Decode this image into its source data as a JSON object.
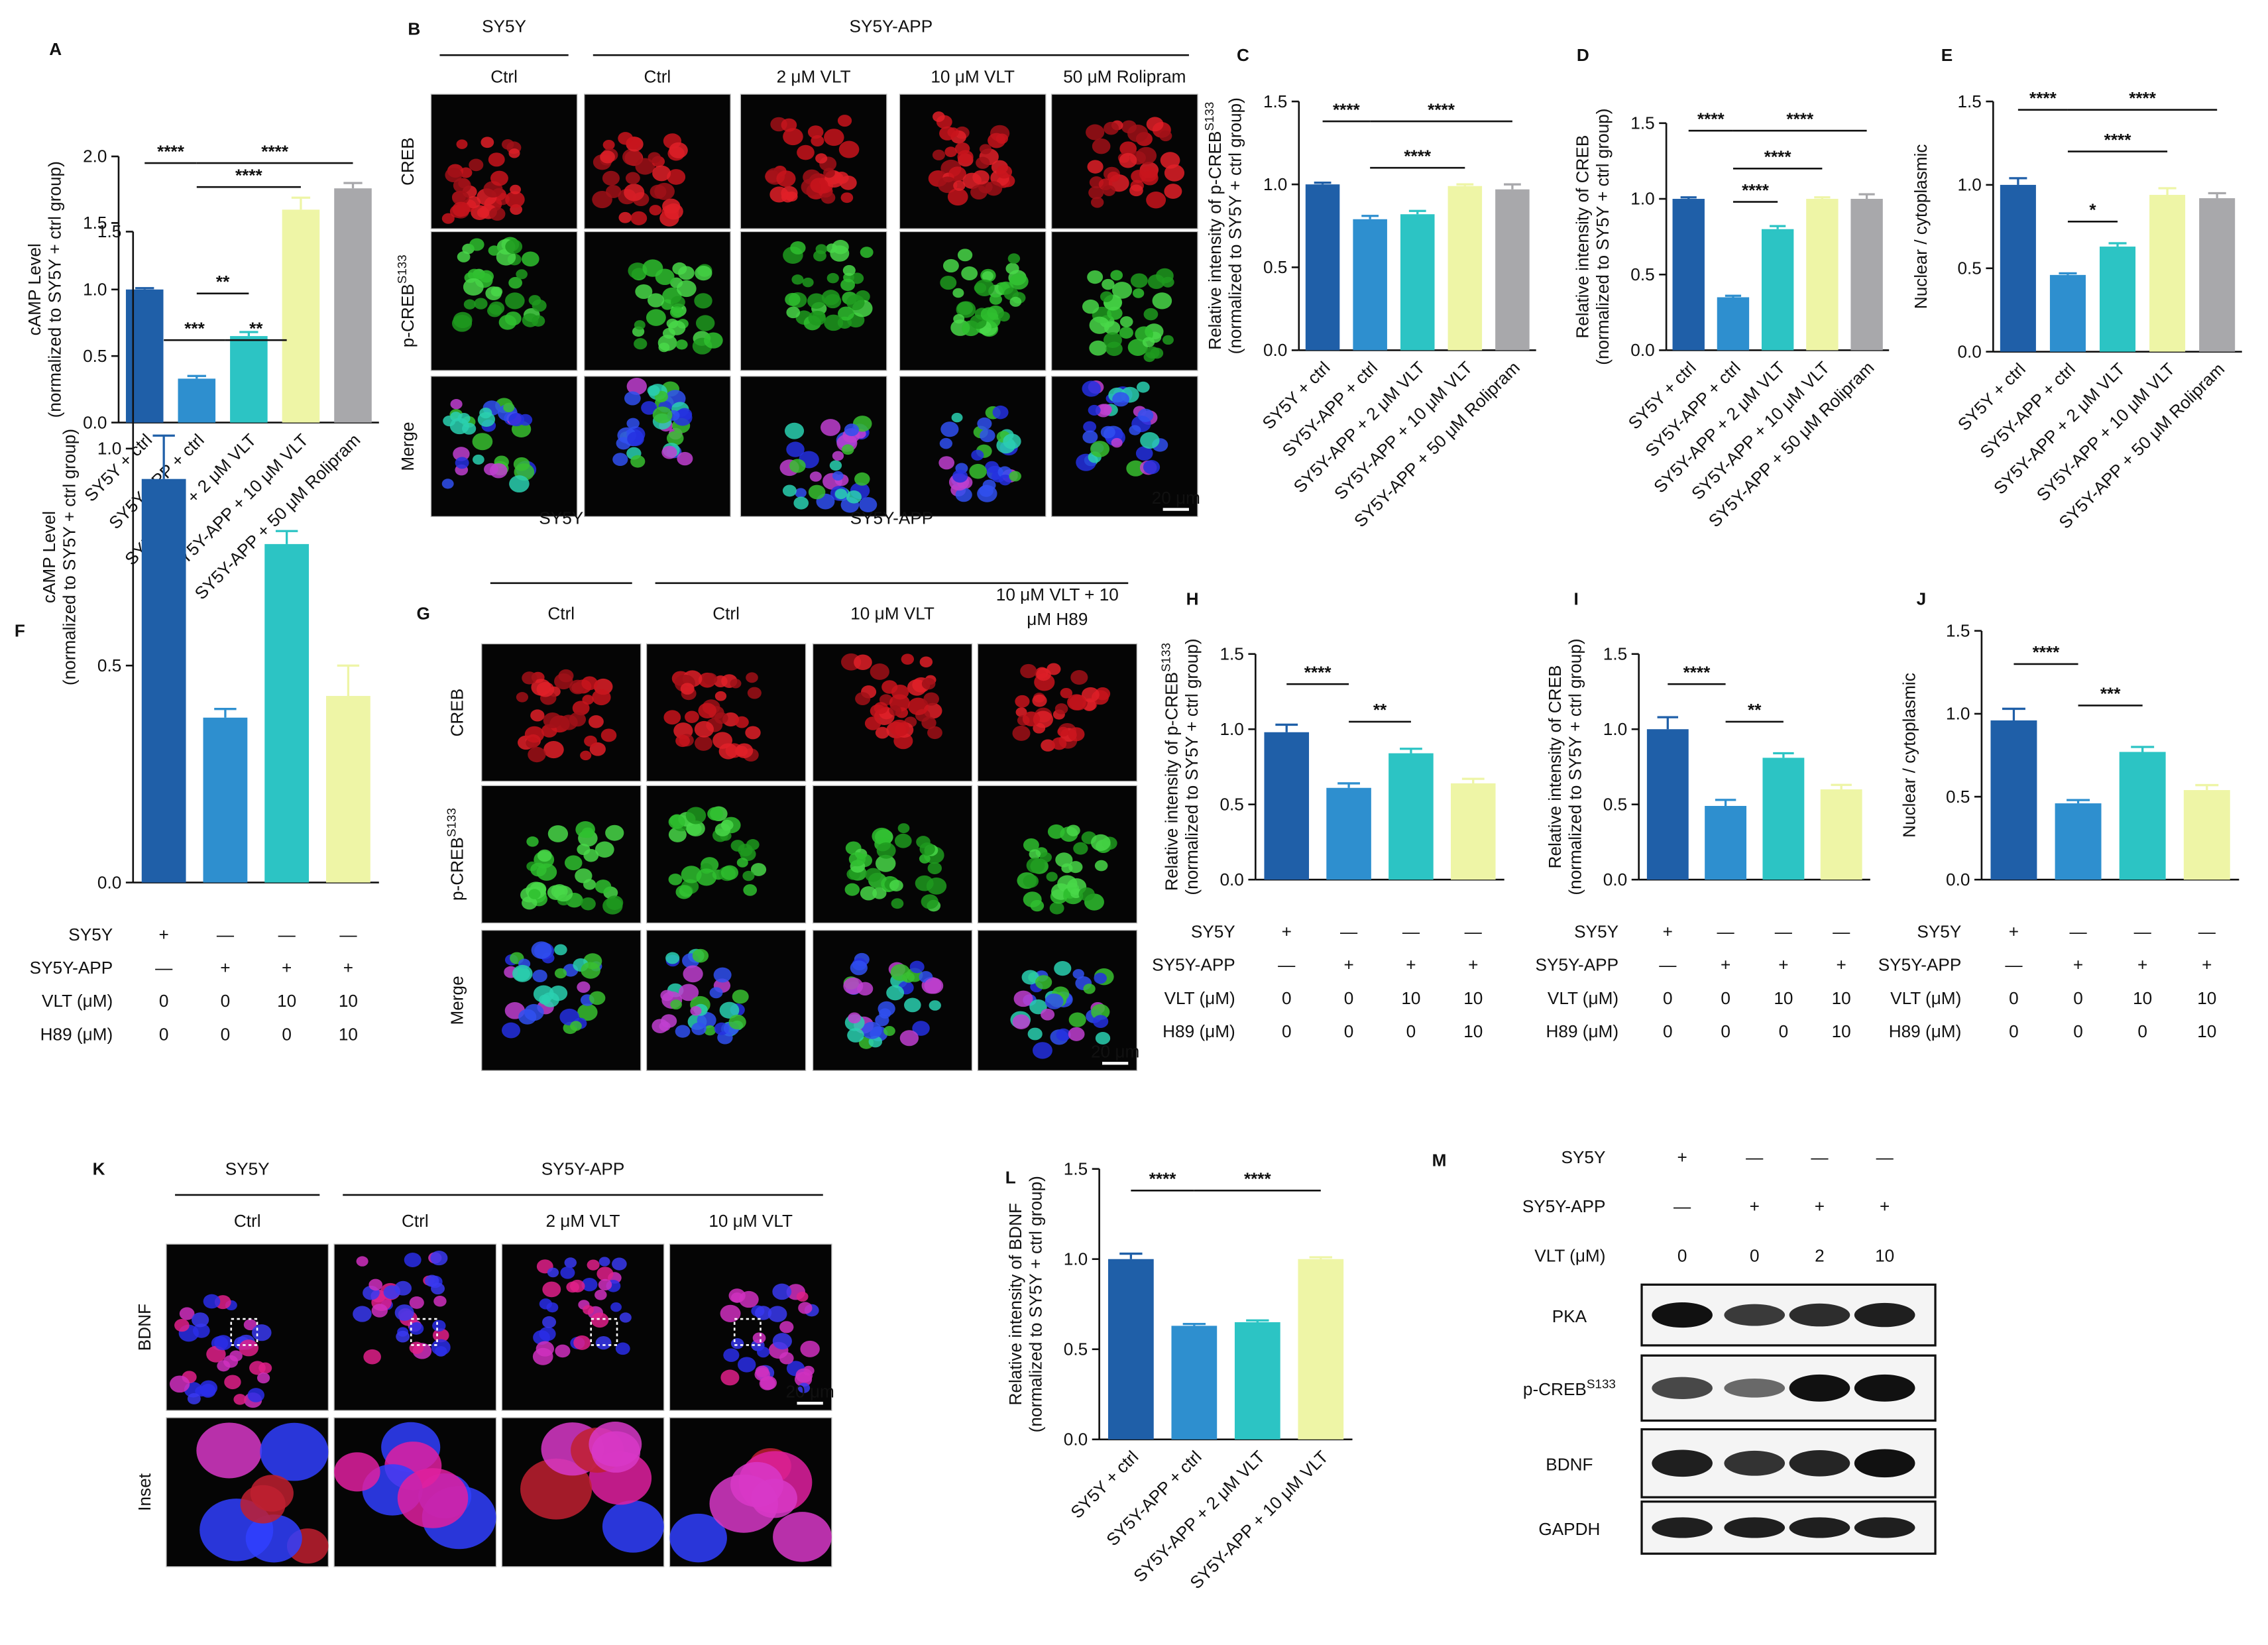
{
  "chart_data": [
    {
      "type": "bar",
      "panel": "A",
      "y_label": [
        "cAMP Level",
        "(normalized to SY5Y + ctrl group)"
      ],
      "categories": [
        "SY5Y + ctrl",
        "SY5Y-APP + ctrl",
        "SY5Y-APP + 2 μM VLT",
        "SY5Y-APP + 10 μM VLT",
        "SY5Y-APP + 50 μM Rolipram"
      ],
      "values": [
        1.0,
        0.33,
        0.65,
        1.6,
        1.76
      ],
      "errors": [
        0.01,
        0.02,
        0.03,
        0.09,
        0.04
      ],
      "colors": [
        "#1f5fa8",
        "#2e8fcf",
        "#2cc4c4",
        "#eef5a6",
        "#a8a8ab"
      ],
      "ylim": [
        0,
        2.0
      ],
      "yticks": [
        {
          "value": 0,
          "label": "0.0"
        },
        0.5,
        {
          "value": 1,
          "label": "1.0"
        },
        1.5,
        {
          "value": 2,
          "label": "2.0"
        }
      ],
      "significance": [
        {
          "groups": [
            0,
            1
          ],
          "y": 1.95,
          "label": "****"
        },
        {
          "groups": [
            1,
            4
          ],
          "y": 1.95,
          "label": "****"
        },
        {
          "groups": [
            1,
            3
          ],
          "y": 1.77,
          "label": "****"
        },
        {
          "groups": [
            1,
            2
          ],
          "y": 0.97,
          "label": "**"
        }
      ]
    },
    {
      "type": "bar",
      "panel": "C",
      "y_label": [
        {
          "text": "Relative intensity of  p-CREB",
          "sup": "S133"
        },
        "(normalized to SY5Y + ctrl group)"
      ],
      "categories": [
        "SY5Y + ctrl",
        "SY5Y-APP + ctrl",
        "SY5Y-APP + 2 μM VLT",
        "SY5Y-APP + 10 μM VLT",
        "SY5Y-APP + 50 μM Rolipram"
      ],
      "values": [
        1.0,
        0.79,
        0.82,
        0.99,
        0.97
      ],
      "errors": [
        0.01,
        0.02,
        0.02,
        0.01,
        0.03
      ],
      "colors": [
        "#1f5fa8",
        "#2e8fcf",
        "#2cc4c4",
        "#eef5a6",
        "#a8a8ab"
      ],
      "ylim": [
        0,
        1.5
      ],
      "yticks": [
        {
          "value": 0,
          "label": "0.0"
        },
        0.5,
        {
          "value": 1,
          "label": "1.0"
        },
        1.5
      ],
      "significance": [
        {
          "groups": [
            0,
            1
          ],
          "y": 1.38,
          "label": "****"
        },
        {
          "groups": [
            1,
            4
          ],
          "y": 1.38,
          "label": "****"
        },
        {
          "groups": [
            1,
            3
          ],
          "y": 1.1,
          "label": "****"
        }
      ]
    },
    {
      "type": "bar",
      "panel": "D",
      "y_label": [
        "Relative intensity of CREB",
        "(normalized to SY5Y + ctrl group)"
      ],
      "categories": [
        "SY5Y + ctrl",
        "SY5Y-APP + ctrl",
        "SY5Y-APP + 2 μM VLT",
        "SY5Y-APP + 10 μM VLT",
        "SY5Y-APP + 50 μM Rolipram"
      ],
      "values": [
        1.0,
        0.35,
        0.8,
        1.0,
        1.0
      ],
      "errors": [
        0.01,
        0.01,
        0.02,
        0.01,
        0.03
      ],
      "colors": [
        "#1f5fa8",
        "#2e8fcf",
        "#2cc4c4",
        "#eef5a6",
        "#a8a8ab"
      ],
      "ylim": [
        0,
        1.5
      ],
      "yticks": [
        {
          "value": 0,
          "label": "0.0"
        },
        0.5,
        {
          "value": 1,
          "label": "1.0"
        },
        1.5
      ],
      "significance": [
        {
          "groups": [
            0,
            1
          ],
          "y": 1.45,
          "label": "****"
        },
        {
          "groups": [
            1,
            4
          ],
          "y": 1.45,
          "label": "****"
        },
        {
          "groups": [
            1,
            3
          ],
          "y": 1.2,
          "label": "****"
        },
        {
          "groups": [
            1,
            2
          ],
          "y": 0.98,
          "label": "****"
        }
      ]
    },
    {
      "type": "bar",
      "panel": "E",
      "y_label": [
        "Nuclear / cytoplasmic"
      ],
      "categories": [
        "SY5Y + ctrl",
        "SY5Y-APP + ctrl",
        "SY5Y-APP + 2 μM VLT",
        "SY5Y-APP + 10 μM VLT",
        "SY5Y-APP + 50 μM Rolipram"
      ],
      "values": [
        1.0,
        0.46,
        0.63,
        0.94,
        0.92
      ],
      "errors": [
        0.04,
        0.01,
        0.02,
        0.04,
        0.03
      ],
      "colors": [
        "#1f5fa8",
        "#2e8fcf",
        "#2cc4c4",
        "#eef5a6",
        "#a8a8ab"
      ],
      "ylim": [
        0,
        1.5
      ],
      "yticks": [
        {
          "value": 0,
          "label": "0.0"
        },
        0.5,
        {
          "value": 1,
          "label": "1.0"
        },
        1.5
      ],
      "significance": [
        {
          "groups": [
            0,
            1
          ],
          "y": 1.45,
          "label": "****"
        },
        {
          "groups": [
            1,
            4
          ],
          "y": 1.45,
          "label": "****"
        },
        {
          "groups": [
            1,
            3
          ],
          "y": 1.2,
          "label": "****"
        },
        {
          "groups": [
            1,
            2
          ],
          "y": 0.78,
          "label": "*"
        }
      ]
    },
    {
      "type": "bar",
      "panel": "F",
      "y_label": [
        "cAMP Level",
        "(normalized to SY5Y + ctrl group)"
      ],
      "values": [
        0.93,
        0.38,
        0.78,
        0.43
      ],
      "errors": [
        0.1,
        0.02,
        0.03,
        0.07
      ],
      "colors": [
        "#1f5fa8",
        "#2e8fcf",
        "#2cc4c4",
        "#eef5a6"
      ],
      "conditions": [
        {
          "label": "SY5Y",
          "values": [
            "+",
            "—",
            "—",
            "—"
          ]
        },
        {
          "label": "SY5Y-APP",
          "values": [
            "—",
            "+",
            "+",
            "+"
          ]
        },
        {
          "label": "VLT (μM)",
          "values": [
            "0",
            "0",
            "10",
            "10"
          ]
        },
        {
          "label": "H89 (μM)",
          "values": [
            "0",
            "0",
            "0",
            "10"
          ]
        }
      ],
      "ylim": [
        0,
        1.5
      ],
      "yticks": [
        {
          "value": 0,
          "label": "0.0"
        },
        0.5,
        {
          "value": 1,
          "label": "1.0"
        },
        1.5
      ],
      "significance": [
        {
          "groups": [
            0,
            1
          ],
          "y": 1.25,
          "label": "***"
        },
        {
          "groups": [
            1,
            2
          ],
          "y": 1.25,
          "label": "**"
        }
      ]
    },
    {
      "type": "bar",
      "panel": "H",
      "y_label": [
        {
          "text": "Relative intensity of  p-CREB",
          "sup": "S133"
        },
        "(normalized to SY5Y + ctrl group)"
      ],
      "values": [
        0.98,
        0.61,
        0.84,
        0.64
      ],
      "errors": [
        0.05,
        0.03,
        0.03,
        0.03
      ],
      "colors": [
        "#1f5fa8",
        "#2e8fcf",
        "#2cc4c4",
        "#eef5a6"
      ],
      "conditions": [
        {
          "label": "SY5Y",
          "values": [
            "+",
            "—",
            "—",
            "—"
          ]
        },
        {
          "label": "SY5Y-APP",
          "values": [
            "—",
            "+",
            "+",
            "+"
          ]
        },
        {
          "label": "VLT (μM)",
          "values": [
            "0",
            "0",
            "10",
            "10"
          ]
        },
        {
          "label": "H89 (μM)",
          "values": [
            "0",
            "0",
            "0",
            "10"
          ]
        }
      ],
      "ylim": [
        0,
        1.5
      ],
      "yticks": [
        {
          "value": 0,
          "label": "0.0"
        },
        0.5,
        {
          "value": 1,
          "label": "1.0"
        },
        1.5
      ],
      "significance": [
        {
          "groups": [
            0,
            1
          ],
          "y": 1.3,
          "label": "****"
        },
        {
          "groups": [
            1,
            2
          ],
          "y": 1.05,
          "label": "**"
        }
      ]
    },
    {
      "type": "bar",
      "panel": "I",
      "y_label": [
        "Relative intensity of  CREB",
        "(normalized to SY5Y + ctrl group)"
      ],
      "values": [
        1.0,
        0.49,
        0.81,
        0.6
      ],
      "errors": [
        0.08,
        0.04,
        0.03,
        0.03
      ],
      "colors": [
        "#1f5fa8",
        "#2e8fcf",
        "#2cc4c4",
        "#eef5a6"
      ],
      "conditions": [
        {
          "label": "SY5Y",
          "values": [
            "+",
            "—",
            "—",
            "—"
          ]
        },
        {
          "label": "SY5Y-APP",
          "values": [
            "—",
            "+",
            "+",
            "+"
          ]
        },
        {
          "label": "VLT (μM)",
          "values": [
            "0",
            "0",
            "10",
            "10"
          ]
        },
        {
          "label": "H89 (μM)",
          "values": [
            "0",
            "0",
            "0",
            "10"
          ]
        }
      ],
      "ylim": [
        0,
        1.5
      ],
      "yticks": [
        {
          "value": 0,
          "label": "0.0"
        },
        0.5,
        {
          "value": 1,
          "label": "1.0"
        },
        1.5
      ],
      "significance": [
        {
          "groups": [
            0,
            1
          ],
          "y": 1.3,
          "label": "****"
        },
        {
          "groups": [
            1,
            2
          ],
          "y": 1.05,
          "label": "**"
        }
      ]
    },
    {
      "type": "bar",
      "panel": "J",
      "y_label": [
        "Nuclear / cytoplasmic"
      ],
      "values": [
        0.96,
        0.46,
        0.77,
        0.54
      ],
      "errors": [
        0.07,
        0.02,
        0.03,
        0.03
      ],
      "colors": [
        "#1f5fa8",
        "#2e8fcf",
        "#2cc4c4",
        "#eef5a6"
      ],
      "conditions": [
        {
          "label": "SY5Y",
          "values": [
            "+",
            "—",
            "—",
            "—"
          ]
        },
        {
          "label": "SY5Y-APP",
          "values": [
            "—",
            "+",
            "+",
            "+"
          ]
        },
        {
          "label": "VLT (μM)",
          "values": [
            "0",
            "0",
            "10",
            "10"
          ]
        },
        {
          "label": "H89 (μM)",
          "values": [
            "0",
            "0",
            "0",
            "10"
          ]
        }
      ],
      "ylim": [
        0,
        1.5
      ],
      "yticks": [
        {
          "value": 0,
          "label": "0.0"
        },
        0.5,
        {
          "value": 1,
          "label": "1.0"
        },
        1.5
      ],
      "significance": [
        {
          "groups": [
            0,
            1
          ],
          "y": 1.3,
          "label": "****"
        },
        {
          "groups": [
            1,
            2
          ],
          "y": 1.05,
          "label": "***"
        }
      ]
    },
    {
      "type": "bar",
      "panel": "L",
      "y_label": [
        "Relative intensity of BDNF",
        "(normalized to SY5Y + ctrl group)"
      ],
      "categories": [
        "SY5Y + ctrl",
        "SY5Y-APP + ctrl",
        "SY5Y-APP + 2 μM VLT",
        "SY5Y-APP + 10 μM VLT"
      ],
      "values": [
        1.0,
        0.63,
        0.65,
        1.0
      ],
      "errors": [
        0.03,
        0.01,
        0.01,
        0.01
      ],
      "colors": [
        "#1f5fa8",
        "#2e8fcf",
        "#2cc4c4",
        "#eef5a6"
      ],
      "ylim": [
        0,
        1.5
      ],
      "yticks": [
        {
          "value": 0,
          "label": "0.0"
        },
        0.5,
        {
          "value": 1,
          "label": "1.0"
        },
        1.5
      ],
      "significance": [
        {
          "groups": [
            0,
            1
          ],
          "y": 1.38,
          "label": "****"
        },
        {
          "groups": [
            1,
            3
          ],
          "y": 1.38,
          "label": "****"
        }
      ]
    }
  ],
  "image_panels": [
    {
      "panel": "B",
      "groups": [
        {
          "label": "SY5Y",
          "span": 1
        },
        {
          "label": "SY5Y-APP",
          "span": 4
        }
      ],
      "columns": [
        "Ctrl",
        "Ctrl",
        "2 μM VLT",
        "10 μM VLT",
        "50 μM Rolipram"
      ],
      "rows": [
        "CREB",
        {
          "text": "p-CREB",
          "sup": "S133"
        },
        "Merge"
      ],
      "row_colors": [
        "#e8141b",
        "#1aa81a",
        "#000000"
      ],
      "scale_bar": "20 μm"
    },
    {
      "panel": "G",
      "groups": [
        {
          "label": "SY5Y",
          "span": 1
        },
        {
          "label": "SY5Y-APP",
          "span": 3
        }
      ],
      "columns": [
        "Ctrl",
        "Ctrl",
        "10 μM VLT",
        [
          "10 μM VLT + 10",
          "μM H89"
        ]
      ],
      "rows": [
        "CREB",
        {
          "text": "p-CREB",
          "sup": "S133"
        },
        "Merge"
      ],
      "row_colors": [
        "#e8141b",
        "#1aa81a",
        "#000000"
      ],
      "scale_bar": "20 μm"
    },
    {
      "panel": "K",
      "groups": [
        {
          "label": "SY5Y",
          "span": 1
        },
        {
          "label": "SY5Y-APP",
          "span": 3
        }
      ],
      "columns": [
        "Ctrl",
        "Ctrl",
        "2 μM VLT",
        "10 μM VLT"
      ],
      "rows": [
        "BDNF",
        "Inset"
      ],
      "row_colors": [
        "#e8141b",
        "#000000"
      ],
      "scale_bar": "20 μm"
    }
  ],
  "western_blot": {
    "panel": "M",
    "conditions": [
      {
        "label": "SY5Y",
        "values": [
          "+",
          "—",
          "—",
          "—"
        ]
      },
      {
        "label": "SY5Y-APP",
        "values": [
          "—",
          "+",
          "+",
          "+"
        ]
      },
      {
        "label": "VLT (μM)",
        "values": [
          "0",
          "0",
          "2",
          "10"
        ]
      }
    ],
    "bands": [
      "PKA",
      {
        "text": "p-CREB",
        "sup": "S133"
      },
      "BDNF",
      "GAPDH"
    ]
  }
}
